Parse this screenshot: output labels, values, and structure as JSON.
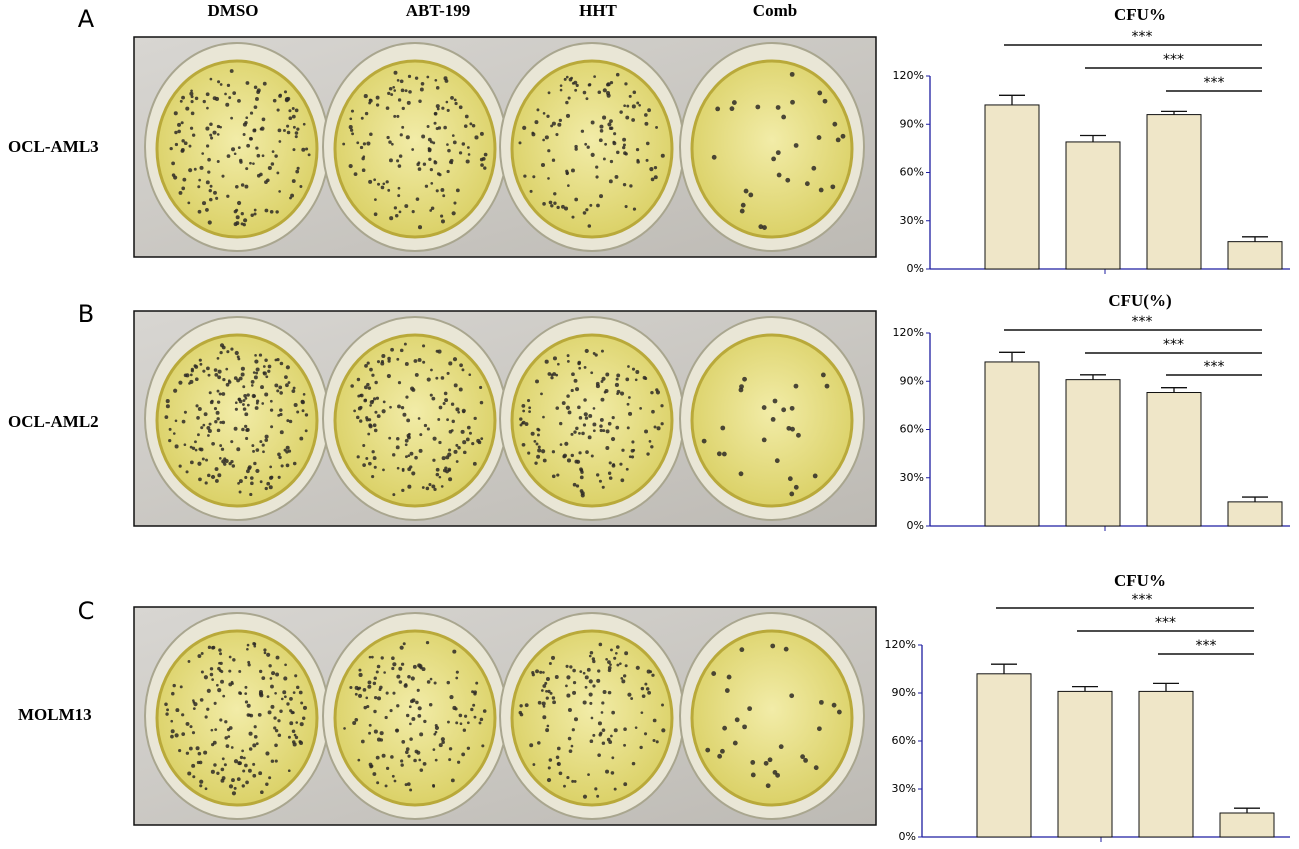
{
  "figure": {
    "columns": [
      "DMSO",
      "ABT-199",
      "HHT",
      "Comb"
    ],
    "panels": [
      {
        "letter": "A",
        "row_label": "OCL-AML3"
      },
      {
        "letter": "B",
        "row_label": "OCL-AML2"
      },
      {
        "letter": "C",
        "row_label": "MOLM13"
      }
    ]
  },
  "chart_data": [
    {
      "type": "bar",
      "title": "CFU%",
      "categories": [
        null,
        null,
        null,
        null
      ],
      "values": [
        102,
        79,
        96,
        17
      ],
      "errors": [
        6,
        4,
        2,
        3
      ],
      "color": "#efe6c8",
      "ylim": [
        0,
        120
      ],
      "yticks": [
        {
          "value": 0,
          "label": "0%"
        },
        {
          "value": 30,
          "label": "30%"
        },
        {
          "value": 60,
          "label": "60%"
        },
        {
          "value": 90,
          "label": "90%"
        },
        {
          "value": 120,
          "label": "120%"
        }
      ],
      "significance": [
        {
          "text": "***",
          "from": 0,
          "to": 3
        },
        {
          "text": "***",
          "from": 1,
          "to": 3
        },
        {
          "text": "***",
          "from": 2,
          "to": 3
        }
      ]
    },
    {
      "type": "bar",
      "title": "CFU(%)",
      "categories": [
        null,
        null,
        null,
        null
      ],
      "values": [
        102,
        91,
        83,
        15
      ],
      "errors": [
        6,
        3,
        3,
        3
      ],
      "color": "#efe6c8",
      "ylim": [
        0,
        120
      ],
      "yticks": [
        {
          "value": 0,
          "label": "0%"
        },
        {
          "value": 30,
          "label": "30%"
        },
        {
          "value": 60,
          "label": "60%"
        },
        {
          "value": 90,
          "label": "90%"
        },
        {
          "value": 120,
          "label": "120%"
        }
      ],
      "significance": [
        {
          "text": "***",
          "from": 0,
          "to": 3
        },
        {
          "text": "***",
          "from": 1,
          "to": 3
        },
        {
          "text": "***",
          "from": 2,
          "to": 3
        }
      ]
    },
    {
      "type": "bar",
      "title": "CFU%",
      "categories": [
        null,
        null,
        null,
        null
      ],
      "values": [
        102,
        91,
        91,
        15
      ],
      "errors": [
        6,
        3,
        5,
        3
      ],
      "color": "#efe6c8",
      "ylim": [
        0,
        120
      ],
      "yticks": [
        {
          "value": 0,
          "label": "0%"
        },
        {
          "value": 30,
          "label": "30%"
        },
        {
          "value": 60,
          "label": "60%"
        },
        {
          "value": 90,
          "label": "90%"
        },
        {
          "value": 120,
          "label": "120%"
        }
      ],
      "significance": [
        {
          "text": "***",
          "from": 0,
          "to": 3
        },
        {
          "text": "***",
          "from": 1,
          "to": 3
        },
        {
          "text": "***",
          "from": 2,
          "to": 3
        }
      ]
    }
  ]
}
